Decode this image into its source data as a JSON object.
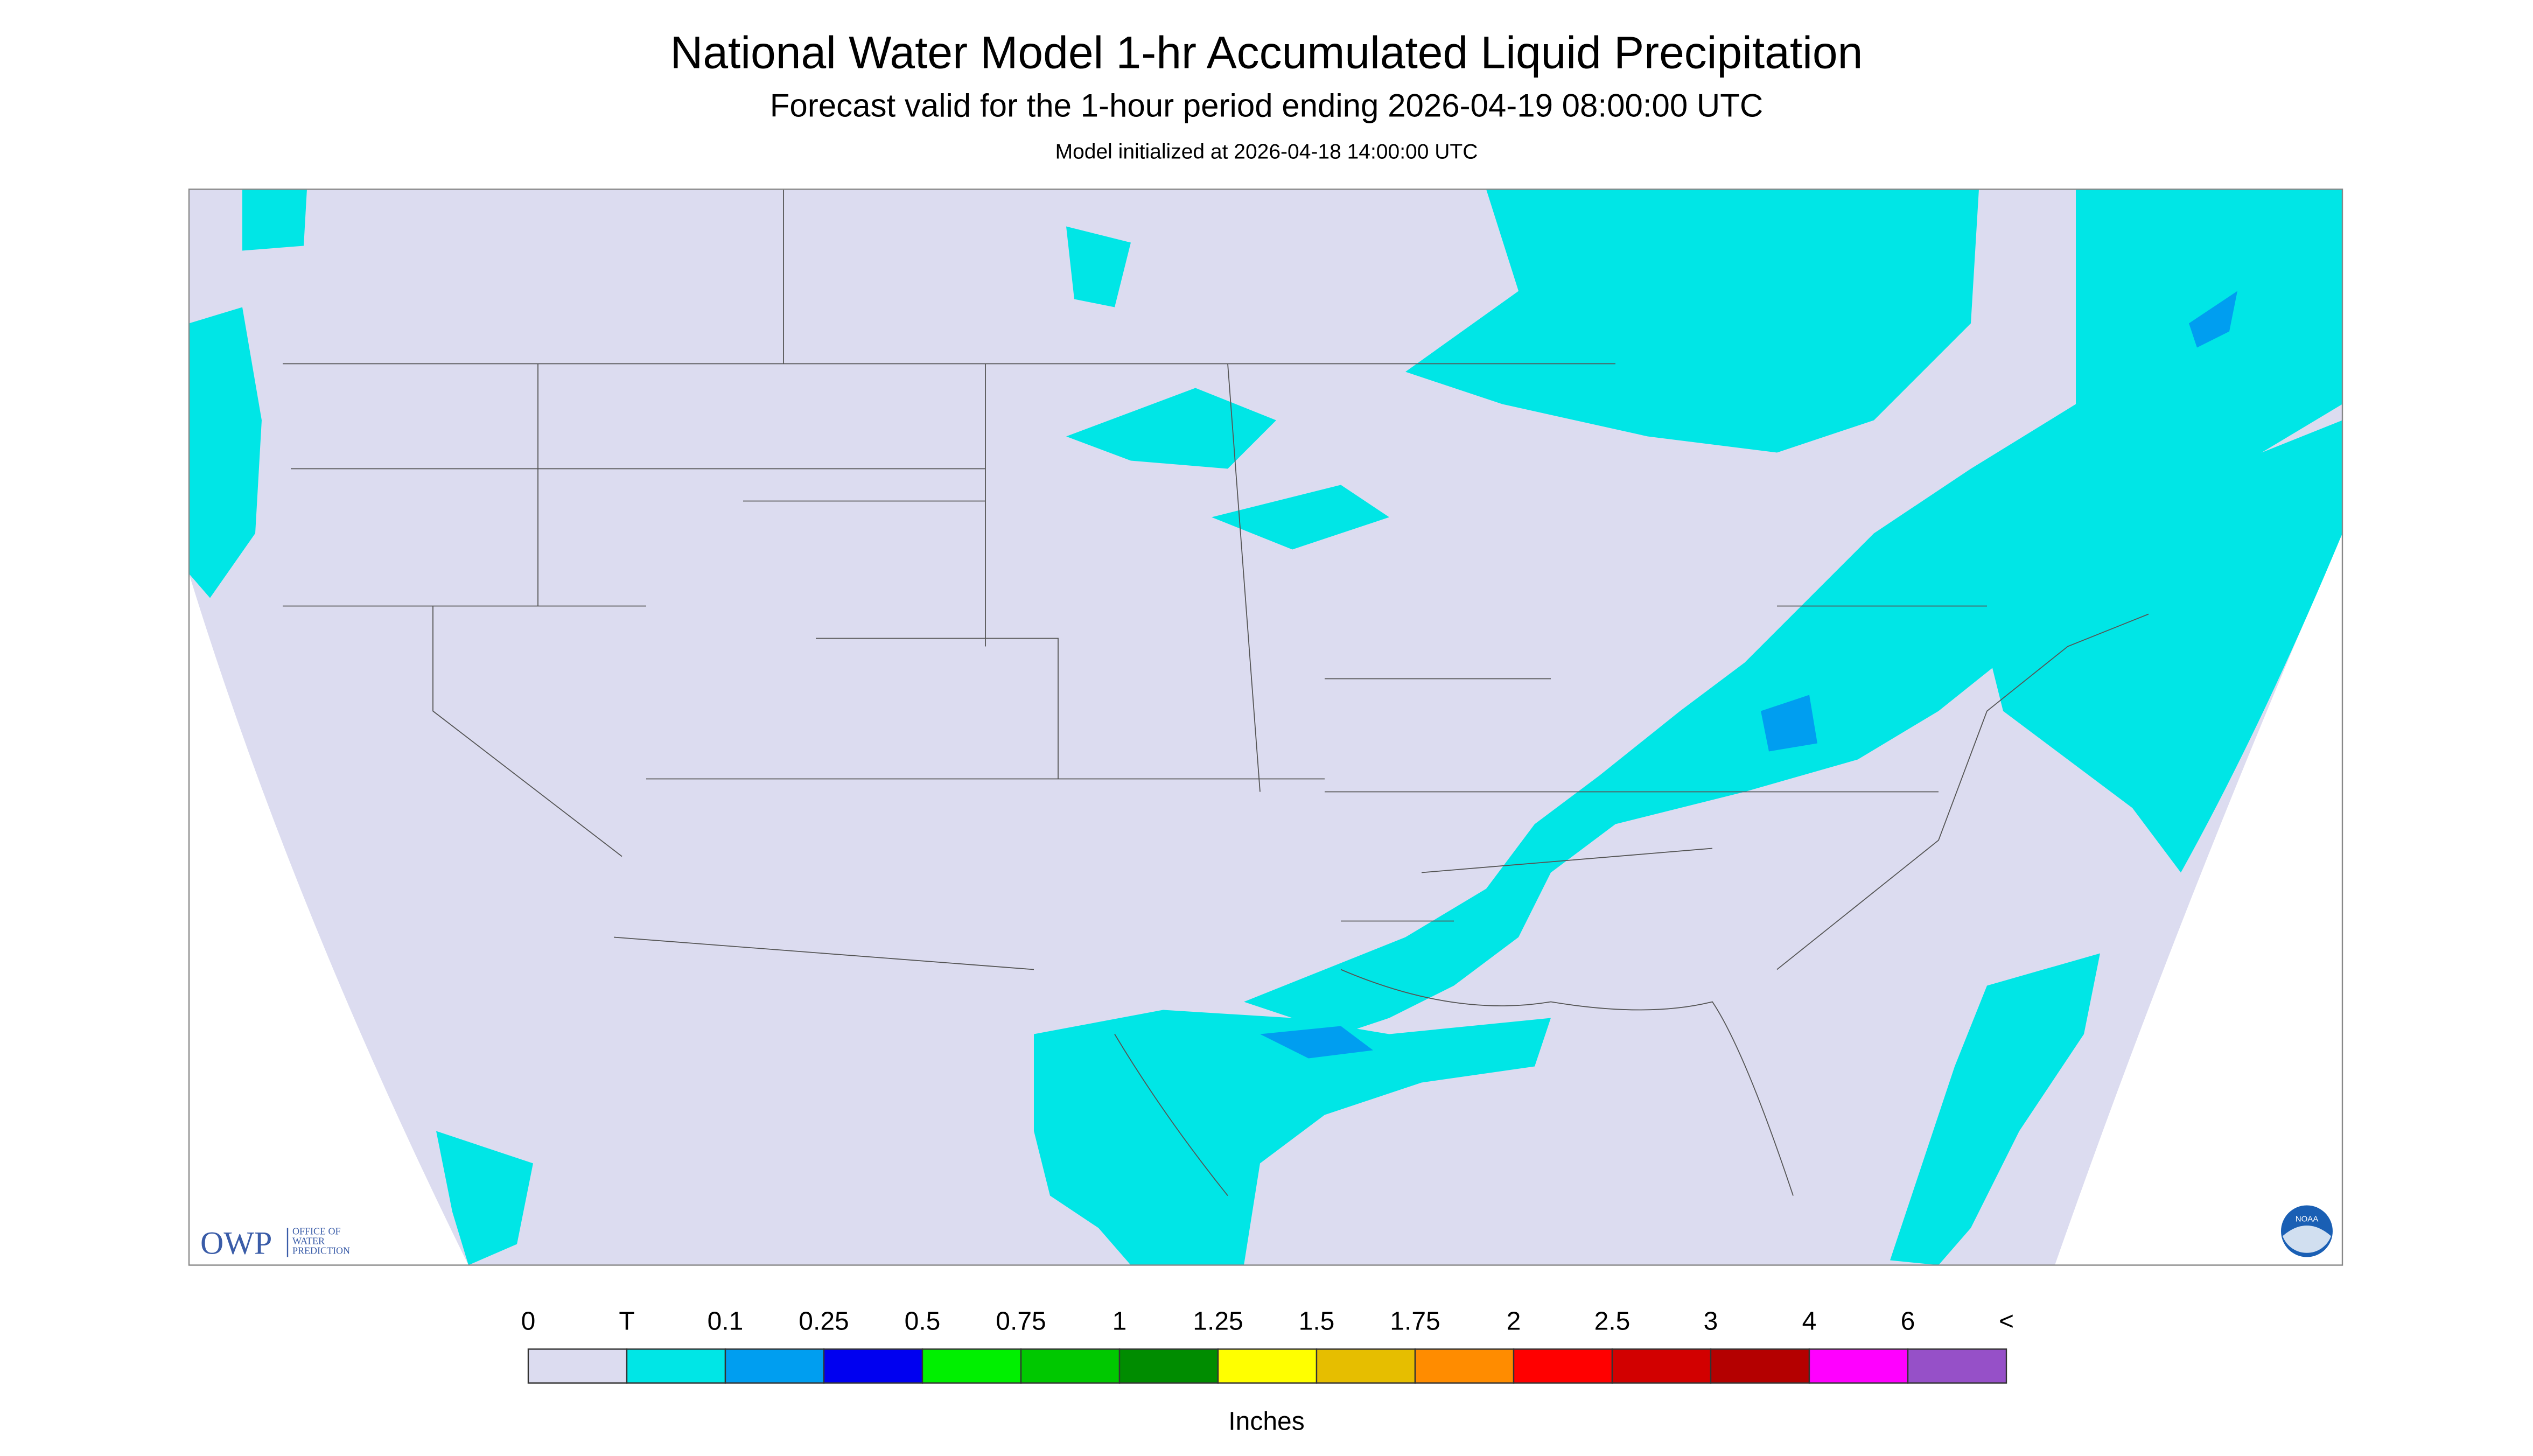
{
  "header": {
    "title": "National Water Model 1-hr Accumulated Liquid Precipitation",
    "subtitle": "Forecast valid for the 1-hour period ending 2026-04-19 08:00:00 UTC",
    "initialized": "Model initialized at 2026-04-18 14:00:00 UTC"
  },
  "legend": {
    "labels": [
      "0",
      "T",
      "0.1",
      "0.25",
      "0.5",
      "0.75",
      "1",
      "1.25",
      "1.5",
      "1.75",
      "2",
      "2.5",
      "3",
      "4",
      "6",
      "<"
    ],
    "colors": [
      "#dcdcf0",
      "#00e6e6",
      "#009ef0",
      "#0000f0",
      "#00f000",
      "#00c800",
      "#008c00",
      "#ffff00",
      "#e6be00",
      "#ff8c00",
      "#ff0000",
      "#d20000",
      "#b40000",
      "#ff00ff",
      "#9650c8"
    ],
    "unit": "Inches"
  },
  "logos": {
    "owp": "OWP",
    "owp_lines": [
      "OFFICE OF",
      "WATER",
      "PREDICTION"
    ],
    "noaa": "NOAA"
  }
}
